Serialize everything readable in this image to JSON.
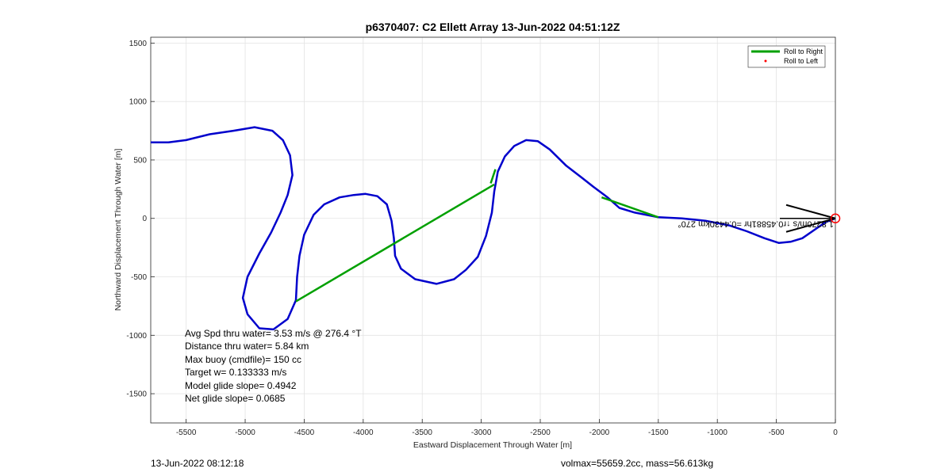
{
  "chart_data": {
    "type": "line",
    "title": "p6370407: C2 Ellett Array 13-Jun-2022 04:51:12Z",
    "xlabel": "Eastward Displacement Through Water [m]",
    "ylabel": "Northward Displacement Through Water [m]",
    "xlim": [
      -5800,
      0
    ],
    "ylim": [
      -1750,
      1550
    ],
    "xticks": [
      -5500,
      -5000,
      -4500,
      -4000,
      -3500,
      -3000,
      -2500,
      -2000,
      -1500,
      -1000,
      -500,
      0
    ],
    "yticks": [
      1500,
      1000,
      500,
      0,
      -500,
      -1000,
      -1500
    ],
    "grid": true,
    "legend_position": "top-right",
    "legend": [
      {
        "label": "Roll to Right",
        "color": "#00a000",
        "marker": "line"
      },
      {
        "label": "Roll to Left",
        "color": "#ff0000",
        "marker": "dot"
      }
    ],
    "track_color": "#0000cc",
    "track": [
      [
        0,
        0
      ],
      [
        -80,
        -30
      ],
      [
        -180,
        -100
      ],
      [
        -280,
        -170
      ],
      [
        -380,
        -200
      ],
      [
        -480,
        -210
      ],
      [
        -600,
        -170
      ],
      [
        -750,
        -110
      ],
      [
        -900,
        -60
      ],
      [
        -1100,
        -20
      ],
      [
        -1300,
        0
      ],
      [
        -1500,
        10
      ],
      [
        -1700,
        50
      ],
      [
        -1830,
        90
      ],
      [
        -1930,
        180
      ],
      [
        -2050,
        270
      ],
      [
        -2150,
        350
      ],
      [
        -2280,
        450
      ],
      [
        -2420,
        590
      ],
      [
        -2520,
        660
      ],
      [
        -2620,
        670
      ],
      [
        -2720,
        620
      ],
      [
        -2800,
        530
      ],
      [
        -2860,
        400
      ],
      [
        -2890,
        230
      ],
      [
        -2910,
        50
      ],
      [
        -2960,
        -150
      ],
      [
        -3030,
        -330
      ],
      [
        -3130,
        -440
      ],
      [
        -3230,
        -520
      ],
      [
        -3380,
        -560
      ],
      [
        -3560,
        -520
      ],
      [
        -3680,
        -430
      ],
      [
        -3730,
        -320
      ],
      [
        -3740,
        -170
      ],
      [
        -3760,
        -20
      ],
      [
        -3800,
        120
      ],
      [
        -3880,
        190
      ],
      [
        -3980,
        210
      ],
      [
        -4080,
        200
      ],
      [
        -4200,
        180
      ],
      [
        -4330,
        120
      ],
      [
        -4420,
        30
      ],
      [
        -4500,
        -140
      ],
      [
        -4540,
        -320
      ],
      [
        -4560,
        -500
      ],
      [
        -4570,
        -700
      ],
      [
        -4640,
        -860
      ],
      [
        -4760,
        -950
      ],
      [
        -4880,
        -940
      ],
      [
        -4980,
        -820
      ],
      [
        -5020,
        -680
      ],
      [
        -4980,
        -500
      ],
      [
        -4880,
        -300
      ],
      [
        -4780,
        -120
      ],
      [
        -4700,
        50
      ],
      [
        -4640,
        200
      ],
      [
        -4600,
        370
      ],
      [
        -4620,
        540
      ],
      [
        -4680,
        670
      ],
      [
        -4770,
        750
      ],
      [
        -4920,
        780
      ],
      [
        -5100,
        750
      ],
      [
        -5300,
        720
      ],
      [
        -5500,
        670
      ],
      [
        -5650,
        650
      ],
      [
        -5800,
        650
      ]
    ],
    "roll_right_segments": [
      [
        [
          -4570,
          -710
        ],
        [
          -2890,
          290
        ]
      ],
      [
        [
          -2920,
          300
        ],
        [
          -2880,
          420
        ]
      ],
      [
        [
          -1980,
          180
        ],
        [
          -1500,
          10
        ]
      ]
    ],
    "surface_marker": [
      0,
      0
    ],
    "annotation_text": "1.8270m/s ↑r0.45881hr =0.4430km 270°",
    "stats": [
      "Avg Spd thru water=  3.53 m/s @ 276.4 °T",
      "Distance thru water=  5.84 km",
      "Max buoy (cmdfile)= 150 cc",
      "Target w= 0.133333 m/s",
      "Model glide slope= 0.4942",
      "Net glide slope= 0.0685"
    ]
  },
  "footer": {
    "left": "13-Jun-2022 08:12:18",
    "right": "volmax=55659.2cc, mass=56.613kg"
  }
}
